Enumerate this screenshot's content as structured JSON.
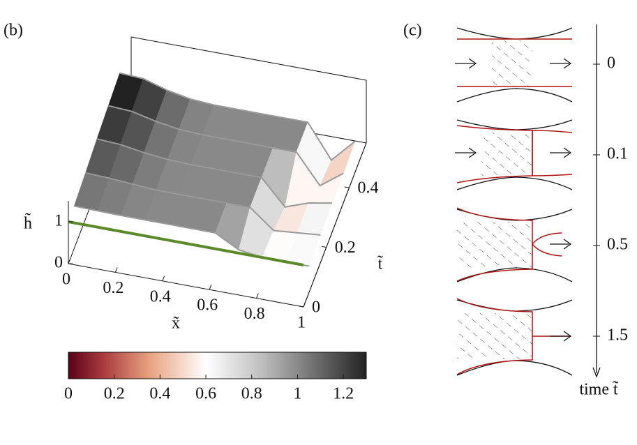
{
  "panel_b": {
    "label": "(b)",
    "x_label": "x̃",
    "t_label": "t̃",
    "h_label": "h̃",
    "xlim": [
      0,
      1
    ],
    "tlim": [
      0,
      0.55
    ],
    "hlim": [
      0,
      1.5
    ],
    "xticks": [
      0,
      0.2,
      0.4,
      0.6,
      0.8,
      1
    ],
    "tticks": [
      0,
      0.2,
      0.4
    ],
    "hticks": [
      0,
      1
    ],
    "initial_line_color": "#5a8a2a",
    "x": [
      0,
      0.1,
      0.2,
      0.3,
      0.4,
      0.5,
      0.6,
      0.7,
      0.8,
      0.9,
      1
    ],
    "profiles": [
      {
        "t": 0.05,
        "h": [
          1.02,
          1.01,
          1,
          1,
          1,
          1,
          1,
          0.7,
          0.62,
          0.6,
          0.62
        ]
      },
      {
        "t": 0.15,
        "h": [
          1.1,
          1.08,
          1.04,
          1,
          1,
          1,
          1,
          1,
          0.55,
          0.6,
          0.65
        ]
      },
      {
        "t": 0.25,
        "h": [
          1.2,
          1.17,
          1.08,
          1.02,
          1,
          1,
          1,
          1,
          0.4,
          0.6,
          0.7
        ]
      },
      {
        "t": 0.35,
        "h": [
          1.28,
          1.25,
          1.12,
          1.03,
          1,
          1,
          1,
          1,
          1,
          0.3,
          0.7
        ]
      },
      {
        "t": 0.45,
        "h": [
          1.35,
          1.32,
          1.15,
          1.04,
          1,
          1,
          1,
          1,
          1,
          0.2,
          0.75
        ]
      }
    ],
    "colorbar": {
      "lim": [
        0,
        1.3
      ],
      "ticks": [
        0,
        0.2,
        0.4,
        0.6,
        0.8,
        1,
        1.2
      ],
      "colormap": [
        [
          0,
          "#5a0018"
        ],
        [
          0.15,
          "#a83a3e"
        ],
        [
          0.35,
          "#e6a07e"
        ],
        [
          0.6,
          "#ffffff"
        ],
        [
          0.85,
          "#bdbdbd"
        ],
        [
          1.3,
          "#222222"
        ]
      ]
    }
  },
  "panel_c": {
    "label": "(c)",
    "time_label": "time t̃",
    "times": [
      0,
      0.1,
      0.5,
      1.5
    ]
  }
}
